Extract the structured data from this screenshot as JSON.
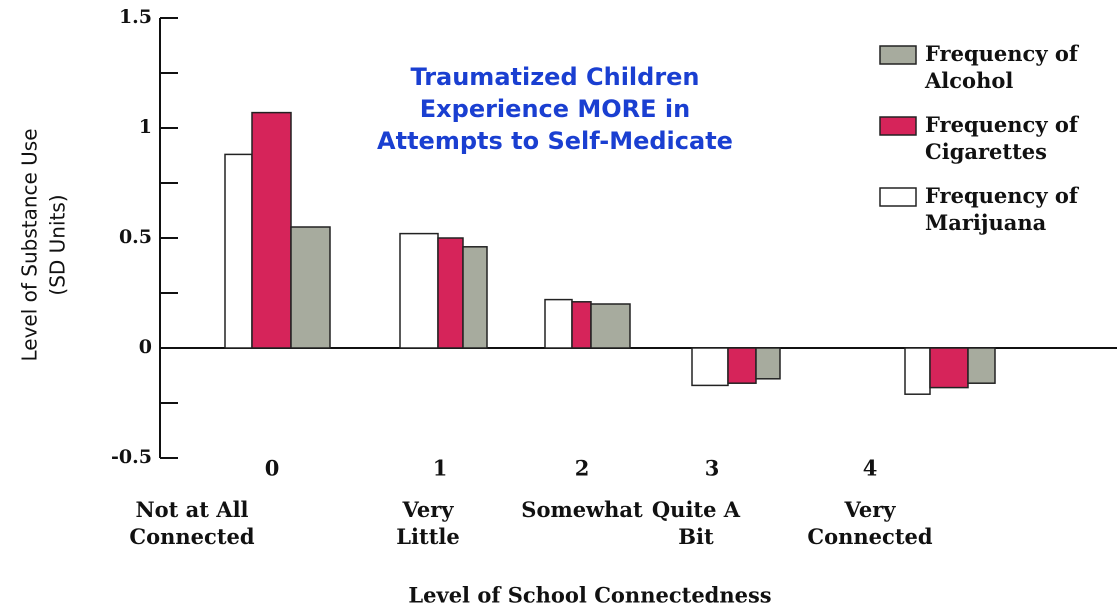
{
  "chart_data": {
    "type": "bar",
    "title": [
      "Traumatized Children",
      "Experience MORE in",
      "Attempts to Self-Medicate"
    ],
    "y_label": [
      "Level of Substance Use",
      "(SD Units)"
    ],
    "x_label": "Level of School Connectedness",
    "categories": [
      "0",
      "1",
      "2",
      "3",
      "4"
    ],
    "category_labels": [
      "Not at All Connected",
      "Very Little",
      "Somewhat",
      "Quite A Bit",
      "Very Connected"
    ],
    "series": [
      {
        "name": "Frequency of Alcohol",
        "color": "#a7ab9e",
        "values": [
          0.55,
          0.46,
          0.2,
          -0.14,
          -0.16
        ]
      },
      {
        "name": "Frequency of Cigarettes",
        "color": "#d6245a",
        "values": [
          1.07,
          0.5,
          0.21,
          -0.16,
          -0.18
        ]
      },
      {
        "name": "Frequency of Marijuana",
        "color": "#ffffff",
        "values": [
          0.88,
          0.52,
          0.22,
          -0.17,
          -0.21
        ]
      }
    ],
    "ylim": [
      -0.5,
      1.5
    ],
    "yticks": [
      -0.5,
      0,
      0.5,
      1,
      1.5
    ],
    "minor_yticks": [
      -0.25,
      0.25,
      0.75,
      1.25
    ]
  }
}
